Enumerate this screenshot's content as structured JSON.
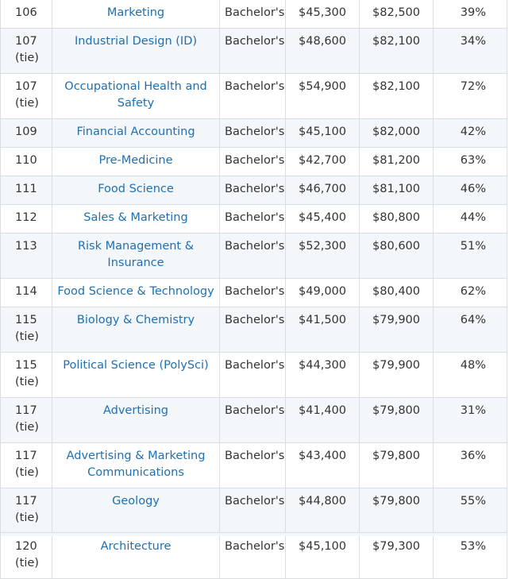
{
  "rows": [
    {
      "rank": "106",
      "tie": "",
      "major": "Marketing",
      "degree": "Bachelor's",
      "early": "$45,300",
      "mid": "$82,500",
      "meaning": "39%"
    },
    {
      "rank": "107",
      "tie": "(tie)",
      "major": "Industrial Design (ID)",
      "degree": "Bachelor's",
      "early": "$48,600",
      "mid": "$82,100",
      "meaning": "34%"
    },
    {
      "rank": "107",
      "tie": "(tie)",
      "major": "Occupational Health and Safety",
      "degree": "Bachelor's",
      "early": "$54,900",
      "mid": "$82,100",
      "meaning": "72%"
    },
    {
      "rank": "109",
      "tie": "",
      "major": "Financial Accounting",
      "degree": "Bachelor's",
      "early": "$45,100",
      "mid": "$82,000",
      "meaning": "42%"
    },
    {
      "rank": "110",
      "tie": "",
      "major": "Pre-Medicine",
      "degree": "Bachelor's",
      "early": "$42,700",
      "mid": "$81,200",
      "meaning": "63%"
    },
    {
      "rank": "111",
      "tie": "",
      "major": "Food Science",
      "degree": "Bachelor's",
      "early": "$46,700",
      "mid": "$81,100",
      "meaning": "46%"
    },
    {
      "rank": "112",
      "tie": "",
      "major": "Sales & Marketing",
      "degree": "Bachelor's",
      "early": "$45,400",
      "mid": "$80,800",
      "meaning": "44%"
    },
    {
      "rank": "113",
      "tie": "",
      "major": "Risk Management & Insurance",
      "degree": "Bachelor's",
      "early": "$52,300",
      "mid": "$80,600",
      "meaning": "51%"
    },
    {
      "rank": "114",
      "tie": "",
      "major": "Food Science & Technology",
      "degree": "Bachelor's",
      "early": "$49,000",
      "mid": "$80,400",
      "meaning": "62%"
    },
    {
      "rank": "115",
      "tie": "(tie)",
      "major": "Biology & Chemistry",
      "degree": "Bachelor's",
      "early": "$41,500",
      "mid": "$79,900",
      "meaning": "64%"
    },
    {
      "rank": "115",
      "tie": "(tie)",
      "major": "Political Science (PolySci)",
      "degree": "Bachelor's",
      "early": "$44,300",
      "mid": "$79,900",
      "meaning": "48%"
    },
    {
      "rank": "117",
      "tie": "(tie)",
      "major": "Advertising",
      "degree": "Bachelor's",
      "early": "$41,400",
      "mid": "$79,800",
      "meaning": "31%"
    },
    {
      "rank": "117",
      "tie": "(tie)",
      "major": "Advertising & Marketing Communications",
      "degree": "Bachelor's",
      "early": "$43,400",
      "mid": "$79,800",
      "meaning": "36%"
    },
    {
      "rank": "117",
      "tie": "(tie)",
      "major": "Geology",
      "degree": "Bachelor's",
      "early": "$44,800",
      "mid": "$79,800",
      "meaning": "55%"
    },
    {
      "rank": "120",
      "tie": "(tie)",
      "major": "Architecture",
      "degree": "Bachelor's",
      "early": "$45,100",
      "mid": "$79,300",
      "meaning": "53%"
    }
  ]
}
